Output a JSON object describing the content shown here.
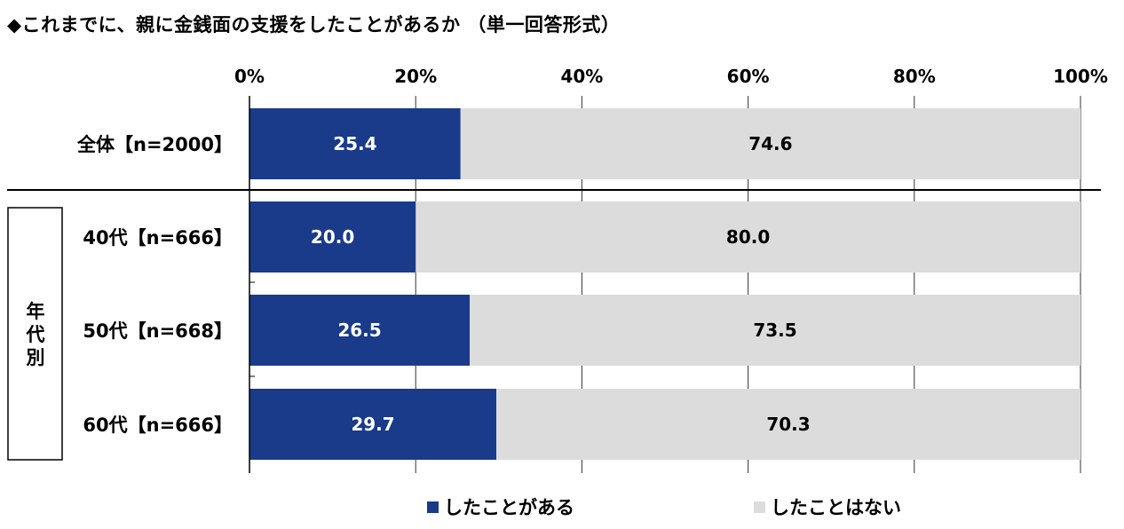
{
  "title": "◆これまでに、親に金銭面の支援をしたことがあるか （単一回答形式）",
  "chart_data": {
    "type": "bar",
    "orientation": "horizontal-stacked-100",
    "x_ticks": [
      "0%",
      "20%",
      "40%",
      "60%",
      "80%",
      "100%"
    ],
    "xlim": [
      0,
      100
    ],
    "group_label": "年代別",
    "categories": [
      "全体【n=2000】",
      "40代【n=666】",
      "50代【n=668】",
      "60代【n=666】"
    ],
    "series": [
      {
        "name": "したことがある",
        "color": "#1a3a8a",
        "label_color": "#ffffff",
        "values": [
          25.4,
          20.0,
          26.5,
          29.7
        ]
      },
      {
        "name": "したことはない",
        "color": "#dcdcdc",
        "label_color": "#000000",
        "values": [
          74.6,
          80.0,
          73.5,
          70.3
        ]
      }
    ],
    "legend_position": "bottom"
  }
}
